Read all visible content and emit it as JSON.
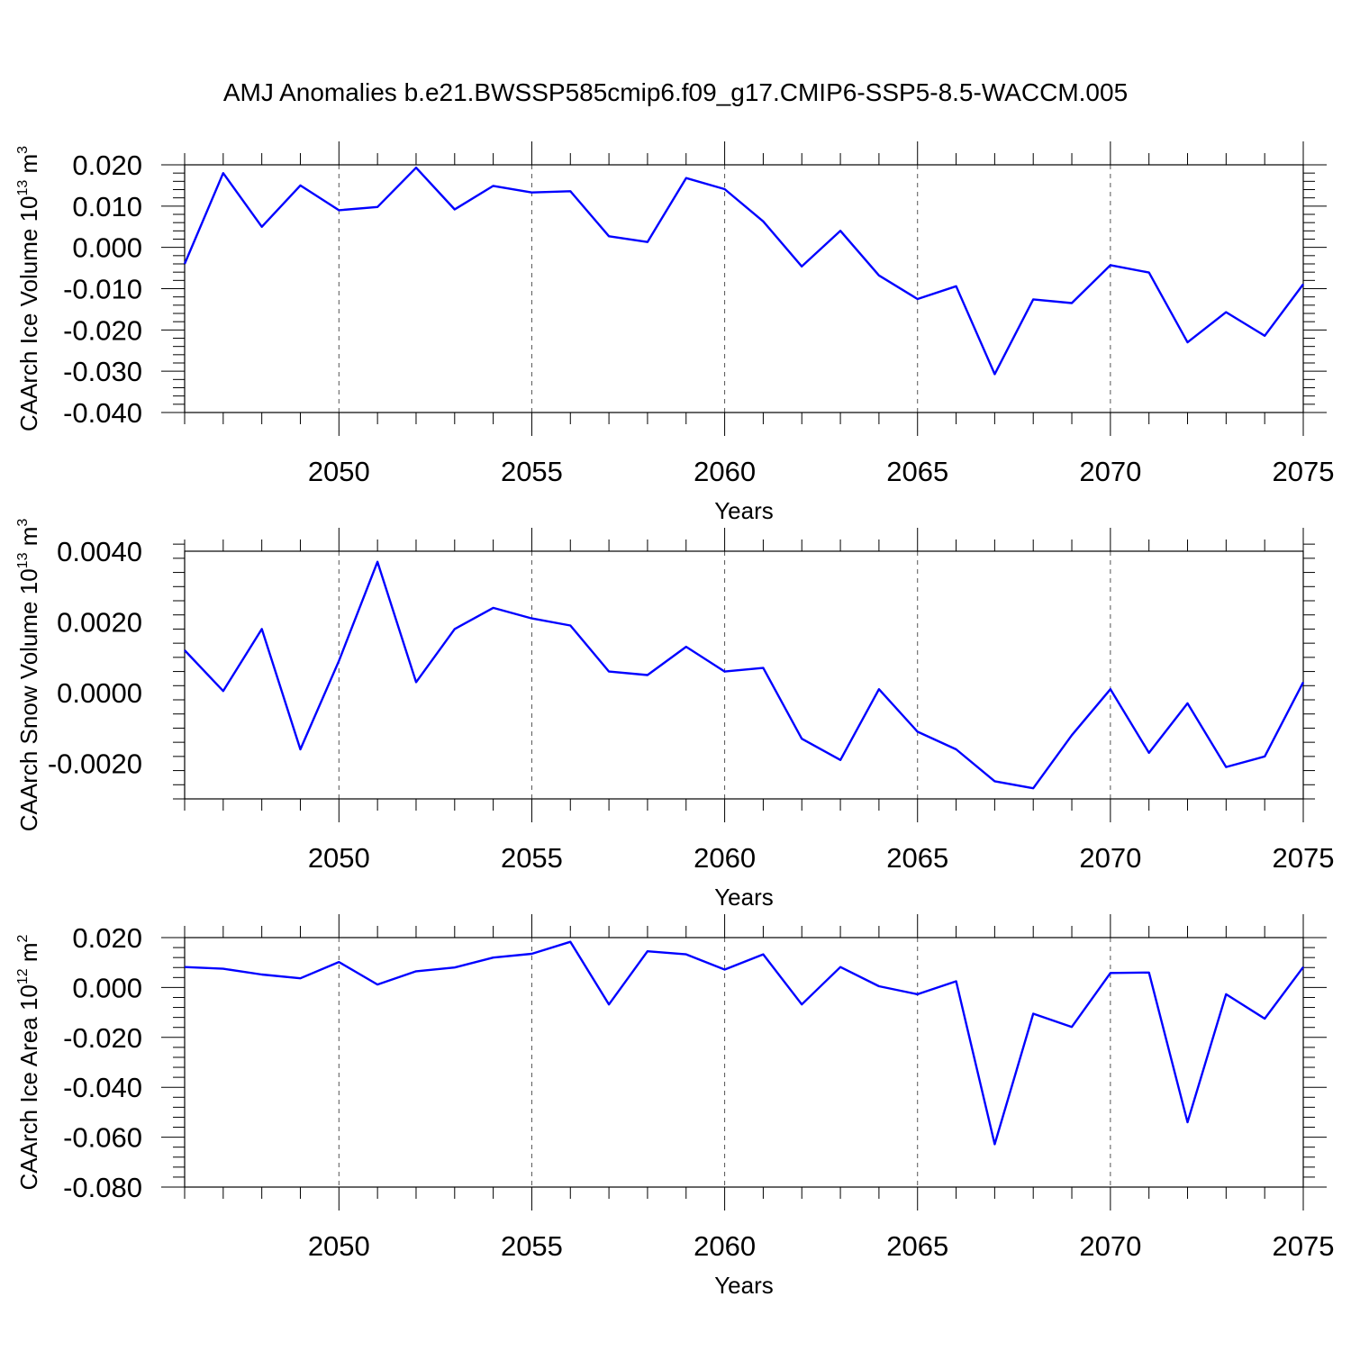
{
  "page": {
    "title": "AMJ Anomalies b.e21.BWSSP585cmip6.f09_g17.CMIP6-SSP5-8.5-WACCM.005"
  },
  "colors": {
    "line": "#0000ff",
    "axis": "#000000",
    "grid": "#555555"
  },
  "chart_data": [
    {
      "type": "line",
      "ylabel_main": "CAArch Ice Volume 10",
      "ylabel_sup": "13",
      "ylabel_unit": " m",
      "ylabel_unit_sup": "3",
      "xlabel": "Years",
      "xlim": [
        2046,
        2075
      ],
      "ylim": [
        -0.04,
        0.02
      ],
      "yticks": [
        -0.04,
        -0.03,
        -0.02,
        -0.01,
        0.0,
        0.01,
        0.02
      ],
      "ytick_labels": [
        "-0.040",
        "-0.030",
        "-0.020",
        "-0.010",
        "0.000",
        "0.010",
        "0.020"
      ],
      "xticks": [
        2050,
        2055,
        2060,
        2065,
        2070,
        2075
      ],
      "xtick_labels": [
        "2050",
        "2055",
        "2060",
        "2065",
        "2070",
        "2075"
      ],
      "x": [
        2046,
        2047,
        2048,
        2049,
        2050,
        2051,
        2052,
        2053,
        2054,
        2055,
        2056,
        2057,
        2058,
        2059,
        2060,
        2061,
        2062,
        2063,
        2064,
        2065,
        2066,
        2067,
        2068,
        2069,
        2070,
        2071,
        2072,
        2073,
        2074,
        2075
      ],
      "series": [
        {
          "name": "Ice Volume",
          "values": [
            -0.004,
            0.018,
            0.005,
            0.015,
            0.009,
            0.0098,
            0.0193,
            0.0092,
            0.0149,
            0.0133,
            0.0136,
            0.0027,
            0.0013,
            0.0168,
            0.0141,
            0.0063,
            -0.0046,
            0.004,
            -0.0068,
            -0.0125,
            -0.0094,
            -0.0307,
            -0.0126,
            -0.0135,
            -0.0043,
            -0.0061,
            -0.023,
            -0.0157,
            -0.0214,
            -0.0089
          ]
        }
      ]
    },
    {
      "type": "line",
      "ylabel_main": "CAArch Snow Volume 10",
      "ylabel_sup": "13",
      "ylabel_unit": " m",
      "ylabel_unit_sup": "3",
      "xlabel": "Years",
      "xlim": [
        2046,
        2075
      ],
      "ylim": [
        -0.003,
        0.004
      ],
      "yticks": [
        -0.002,
        0.0,
        0.002,
        0.004
      ],
      "ytick_labels": [
        "-0.0020",
        "0.0000",
        "0.0020",
        "0.0040"
      ],
      "xticks": [
        2050,
        2055,
        2060,
        2065,
        2070,
        2075
      ],
      "xtick_labels": [
        "2050",
        "2055",
        "2060",
        "2065",
        "2070",
        "2075"
      ],
      "x": [
        2046,
        2047,
        2048,
        2049,
        2050,
        2051,
        2052,
        2053,
        2054,
        2055,
        2056,
        2057,
        2058,
        2059,
        2060,
        2061,
        2062,
        2063,
        2064,
        2065,
        2066,
        2067,
        2068,
        2069,
        2070,
        2071,
        2072,
        2073,
        2074,
        2075
      ],
      "series": [
        {
          "name": "Snow Volume",
          "values": [
            0.0012,
            5e-05,
            0.0018,
            -0.0016,
            0.0009,
            0.0037,
            0.0003,
            0.0018,
            0.0024,
            0.0021,
            0.0019,
            0.0006,
            0.0005,
            0.0013,
            0.0006,
            0.0007,
            -0.0013,
            -0.0019,
            0.0001,
            -0.0011,
            -0.0016,
            -0.0025,
            -0.0027,
            -0.0012,
            0.0001,
            -0.0017,
            -0.0003,
            -0.0021,
            -0.0018,
            0.0003
          ]
        }
      ]
    },
    {
      "type": "line",
      "ylabel_main": "CAArch Ice Area 10",
      "ylabel_sup": "12",
      "ylabel_unit": " m",
      "ylabel_unit_sup": "2",
      "xlabel": "Years",
      "xlim": [
        2046,
        2075
      ],
      "ylim": [
        -0.08,
        0.02
      ],
      "yticks": [
        -0.08,
        -0.06,
        -0.04,
        -0.02,
        0.0,
        0.02
      ],
      "ytick_labels": [
        "-0.080",
        "-0.060",
        "-0.040",
        "-0.020",
        "0.000",
        "0.020"
      ],
      "xticks": [
        2050,
        2055,
        2060,
        2065,
        2070,
        2075
      ],
      "xtick_labels": [
        "2050",
        "2055",
        "2060",
        "2065",
        "2070",
        "2075"
      ],
      "x": [
        2046,
        2047,
        2048,
        2049,
        2050,
        2051,
        2052,
        2053,
        2054,
        2055,
        2056,
        2057,
        2058,
        2059,
        2060,
        2061,
        2062,
        2063,
        2064,
        2065,
        2066,
        2067,
        2068,
        2069,
        2070,
        2071,
        2072,
        2073,
        2074,
        2075
      ],
      "series": [
        {
          "name": "Ice Area",
          "values": [
            0.0082,
            0.0075,
            0.0052,
            0.0037,
            0.0102,
            0.0012,
            0.0065,
            0.008,
            0.012,
            0.0135,
            0.0183,
            -0.0068,
            0.0145,
            0.0133,
            0.0072,
            0.0133,
            -0.0068,
            0.0082,
            0.0005,
            -0.0027,
            0.0025,
            -0.0628,
            -0.0105,
            -0.0158,
            0.0058,
            0.006,
            -0.054,
            -0.0027,
            -0.0125,
            0.0082
          ]
        }
      ]
    }
  ]
}
